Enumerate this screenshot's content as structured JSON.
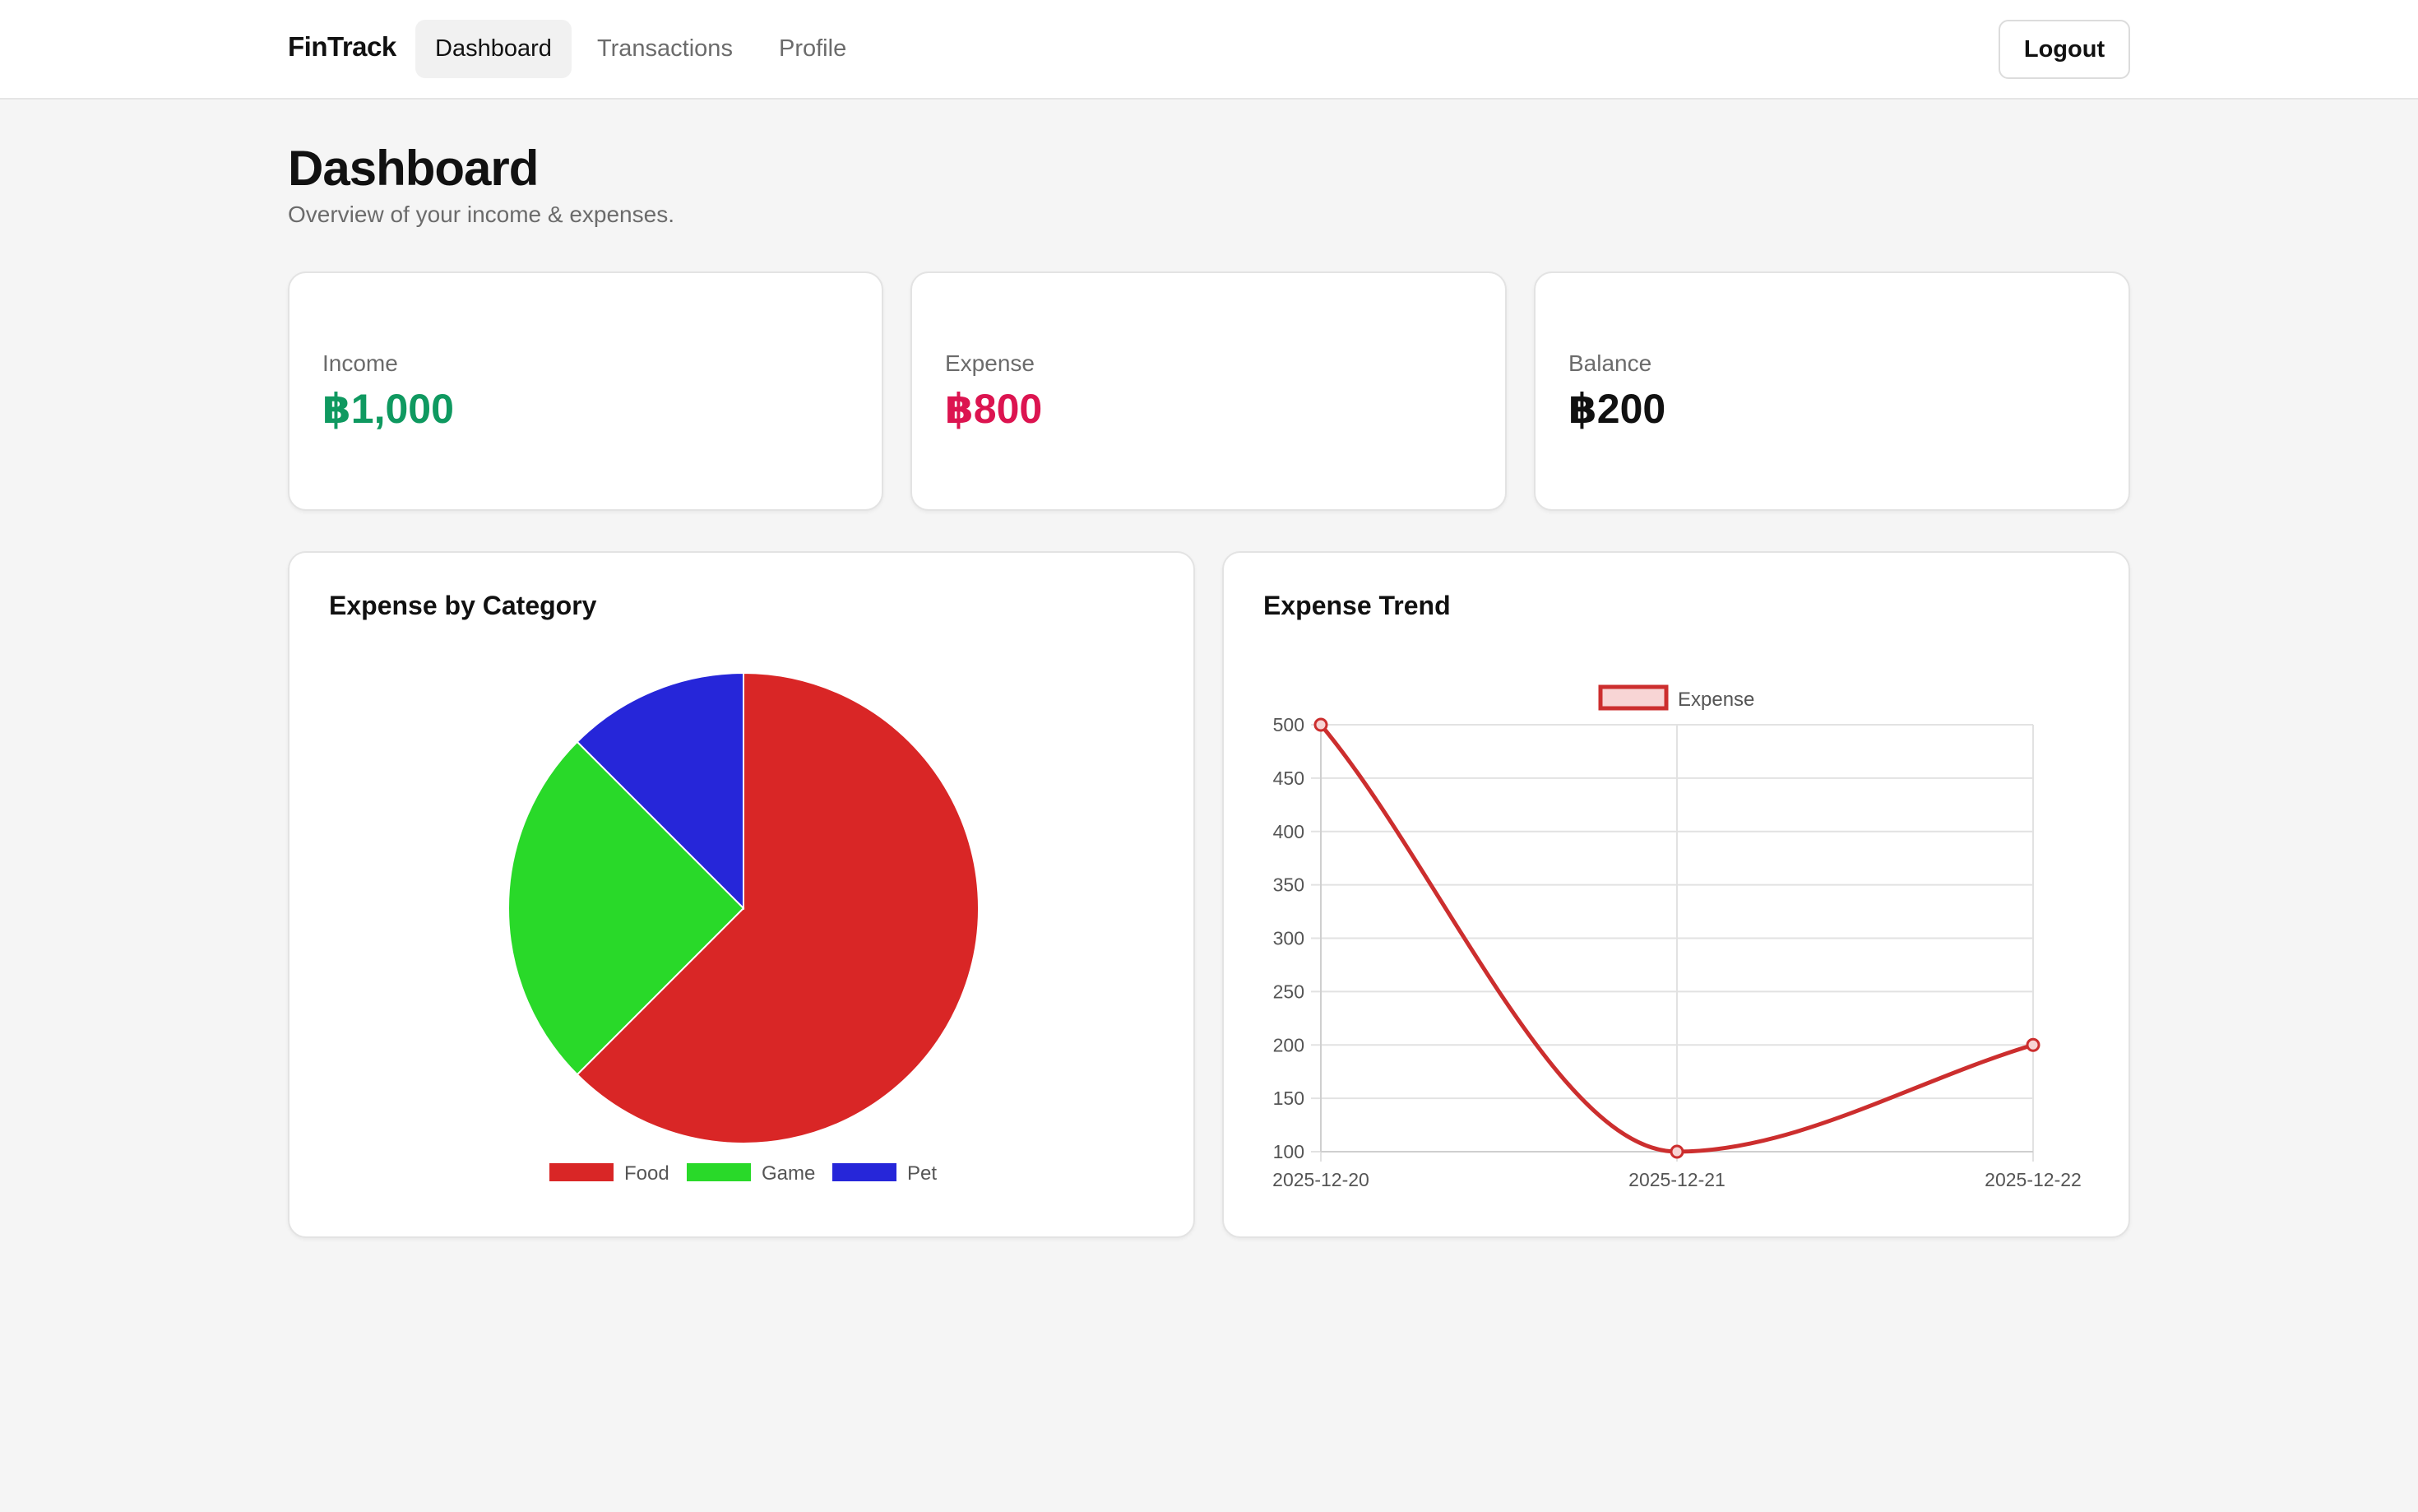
{
  "header": {
    "brand": "FinTrack",
    "nav": [
      {
        "label": "Dashboard",
        "active": true
      },
      {
        "label": "Transactions",
        "active": false
      },
      {
        "label": "Profile",
        "active": false
      }
    ],
    "logout_label": "Logout"
  },
  "page": {
    "title": "Dashboard",
    "subtitle": "Overview of your income & expenses."
  },
  "stats": [
    {
      "label": "Income",
      "value": "฿1,000",
      "color": "#0f9960"
    },
    {
      "label": "Expense",
      "value": "฿800",
      "color": "#dc1450"
    },
    {
      "label": "Balance",
      "value": "฿200",
      "color": "#111111"
    }
  ],
  "panels": {
    "pie_title": "Expense by Category",
    "trend_title": "Expense Trend"
  },
  "chart_data": [
    {
      "type": "pie",
      "title": "Expense by Category",
      "categories": [
        "Food",
        "Game",
        "Pet"
      ],
      "values": [
        500,
        200,
        100
      ],
      "colors": [
        "#d92626",
        "#29d929",
        "#2626d9"
      ],
      "legend_position": "bottom"
    },
    {
      "type": "line",
      "title": "Expense Trend",
      "x": [
        "2025-12-20",
        "2025-12-21",
        "2025-12-22"
      ],
      "series": [
        {
          "name": "Expense",
          "values": [
            500,
            100,
            200
          ],
          "color": "#cc2e2e"
        }
      ],
      "ylim": [
        100,
        500
      ],
      "yticks": [
        100,
        150,
        200,
        250,
        300,
        350,
        400,
        450,
        500
      ],
      "grid": true,
      "legend_position": "top"
    }
  ]
}
